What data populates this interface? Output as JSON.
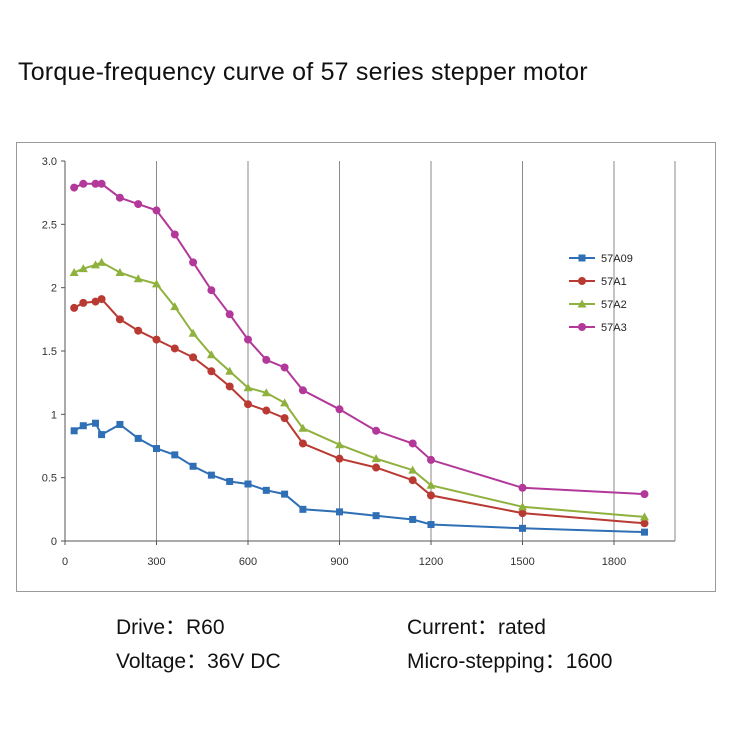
{
  "title": "Torque-frequency curve of 57 series stepper motor",
  "captions": {
    "drive_key": "Drive：",
    "drive_value": "R60",
    "current_key": "Current：",
    "current_value": "rated",
    "voltage_key": "Voltage：",
    "voltage_value": "36V DC",
    "micro_key": "Micro-stepping：",
    "micro_value": "1600"
  },
  "chart_data": {
    "type": "line",
    "title": "",
    "xlabel": "",
    "ylabel": "",
    "xlim": [
      0,
      2000
    ],
    "ylim": [
      0,
      3.0
    ],
    "x_ticks": [
      0,
      300,
      600,
      900,
      1200,
      1500,
      1800
    ],
    "y_ticks": [
      0,
      0.5,
      1,
      1.5,
      2,
      2.5,
      3.0
    ],
    "x_tick_labels": [
      "0",
      "300",
      "600",
      "900",
      "1200",
      "1500",
      "1800"
    ],
    "y_tick_labels": [
      "0",
      "0.5",
      "1",
      "1.5",
      "2",
      "2.5",
      "3.0"
    ],
    "grid": true,
    "legend": "right",
    "series": [
      {
        "name": "57A09",
        "color": "#2e6fb5",
        "marker": "square",
        "points": [
          [
            30,
            0.87
          ],
          [
            60,
            0.91
          ],
          [
            100,
            0.93
          ],
          [
            120,
            0.84
          ],
          [
            180,
            0.92
          ],
          [
            240,
            0.81
          ],
          [
            300,
            0.73
          ],
          [
            360,
            0.68
          ],
          [
            420,
            0.59
          ],
          [
            480,
            0.52
          ],
          [
            540,
            0.47
          ],
          [
            600,
            0.45
          ],
          [
            660,
            0.4
          ],
          [
            720,
            0.37
          ],
          [
            780,
            0.25
          ],
          [
            900,
            0.23
          ],
          [
            1020,
            0.2
          ],
          [
            1140,
            0.17
          ],
          [
            1200,
            0.13
          ],
          [
            1500,
            0.1
          ],
          [
            1900,
            0.07
          ]
        ]
      },
      {
        "name": "57A1",
        "color": "#b93a32",
        "marker": "circle",
        "points": [
          [
            30,
            1.84
          ],
          [
            60,
            1.88
          ],
          [
            100,
            1.89
          ],
          [
            120,
            1.91
          ],
          [
            180,
            1.75
          ],
          [
            240,
            1.66
          ],
          [
            300,
            1.59
          ],
          [
            360,
            1.52
          ],
          [
            420,
            1.45
          ],
          [
            480,
            1.34
          ],
          [
            540,
            1.22
          ],
          [
            600,
            1.08
          ],
          [
            660,
            1.03
          ],
          [
            720,
            0.97
          ],
          [
            780,
            0.77
          ],
          [
            900,
            0.65
          ],
          [
            1020,
            0.58
          ],
          [
            1140,
            0.48
          ],
          [
            1200,
            0.36
          ],
          [
            1500,
            0.22
          ],
          [
            1900,
            0.14
          ]
        ]
      },
      {
        "name": "57A2",
        "color": "#8fb13e",
        "marker": "triangle",
        "points": [
          [
            30,
            2.12
          ],
          [
            60,
            2.15
          ],
          [
            100,
            2.18
          ],
          [
            120,
            2.2
          ],
          [
            180,
            2.12
          ],
          [
            240,
            2.07
          ],
          [
            300,
            2.03
          ],
          [
            360,
            1.85
          ],
          [
            420,
            1.64
          ],
          [
            480,
            1.47
          ],
          [
            540,
            1.34
          ],
          [
            600,
            1.21
          ],
          [
            660,
            1.17
          ],
          [
            720,
            1.09
          ],
          [
            780,
            0.89
          ],
          [
            900,
            0.76
          ],
          [
            1020,
            0.65
          ],
          [
            1140,
            0.56
          ],
          [
            1200,
            0.44
          ],
          [
            1500,
            0.27
          ],
          [
            1900,
            0.19
          ]
        ]
      },
      {
        "name": "57A3",
        "color": "#b2399a",
        "marker": "circle",
        "points": [
          [
            30,
            2.79
          ],
          [
            60,
            2.82
          ],
          [
            100,
            2.82
          ],
          [
            120,
            2.82
          ],
          [
            180,
            2.71
          ],
          [
            240,
            2.66
          ],
          [
            300,
            2.61
          ],
          [
            360,
            2.42
          ],
          [
            420,
            2.2
          ],
          [
            480,
            1.98
          ],
          [
            540,
            1.79
          ],
          [
            600,
            1.59
          ],
          [
            660,
            1.43
          ],
          [
            720,
            1.37
          ],
          [
            780,
            1.19
          ],
          [
            900,
            1.04
          ],
          [
            1020,
            0.87
          ],
          [
            1140,
            0.77
          ],
          [
            1200,
            0.64
          ],
          [
            1500,
            0.42
          ],
          [
            1900,
            0.37
          ]
        ]
      }
    ]
  }
}
